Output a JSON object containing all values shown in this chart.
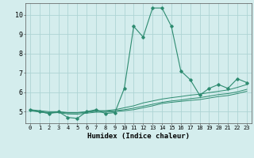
{
  "x": [
    0,
    1,
    2,
    3,
    4,
    5,
    6,
    7,
    8,
    9,
    10,
    11,
    12,
    13,
    14,
    15,
    16,
    17,
    18,
    19,
    20,
    21,
    22,
    23
  ],
  "y_main": [
    5.1,
    5.0,
    4.9,
    5.0,
    4.7,
    4.65,
    5.0,
    5.1,
    4.9,
    4.95,
    6.2,
    9.4,
    8.85,
    10.35,
    10.35,
    9.4,
    7.1,
    6.65,
    5.85,
    6.2,
    6.4,
    6.2,
    6.7,
    6.5
  ],
  "y_trend1": [
    5.1,
    5.05,
    5.0,
    5.0,
    4.95,
    4.95,
    5.0,
    5.05,
    5.05,
    5.1,
    5.2,
    5.3,
    5.45,
    5.55,
    5.65,
    5.72,
    5.78,
    5.85,
    5.9,
    5.98,
    6.05,
    6.12,
    6.25,
    6.4
  ],
  "y_trend2": [
    5.1,
    5.0,
    4.95,
    4.98,
    4.93,
    4.93,
    4.97,
    5.02,
    5.02,
    5.05,
    5.1,
    5.18,
    5.28,
    5.38,
    5.48,
    5.55,
    5.6,
    5.67,
    5.72,
    5.8,
    5.88,
    5.93,
    6.02,
    6.15
  ],
  "y_trend3": [
    5.05,
    4.98,
    4.92,
    4.95,
    4.88,
    4.87,
    4.92,
    4.97,
    4.97,
    5.0,
    5.05,
    5.1,
    5.2,
    5.3,
    5.42,
    5.48,
    5.53,
    5.58,
    5.62,
    5.7,
    5.78,
    5.83,
    5.93,
    6.05
  ],
  "line_color": "#2d8b70",
  "background_color": "#d4eded",
  "grid_color": "#aed4d4",
  "xlabel": "Humidex (Indice chaleur)",
  "xlim": [
    0,
    23
  ],
  "ylim": [
    4.4,
    10.6
  ],
  "yticks": [
    5,
    6,
    7,
    8,
    9,
    10
  ],
  "xtick_fontsize": 5.0,
  "ytick_fontsize": 6.0,
  "xlabel_fontsize": 6.5
}
